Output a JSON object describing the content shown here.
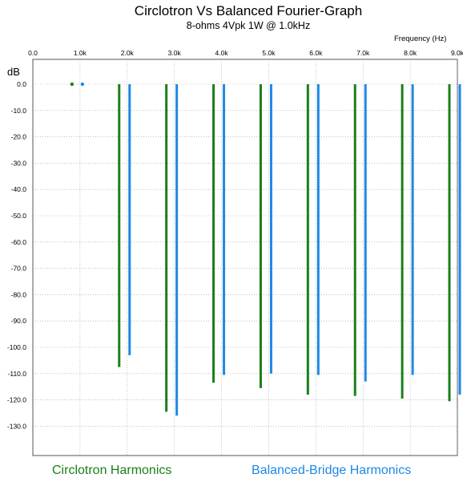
{
  "chart_data": {
    "type": "bar",
    "title": "Circlotron Vs Balanced Fourier-Graph",
    "subtitle": "8-ohms 4Vpk 1W @ 1.0kHz",
    "xlabel": "Frequency   (Hz)",
    "ylabel": "dB",
    "xlim": [
      0,
      9000
    ],
    "ylim": [
      -140,
      0
    ],
    "x_tick_labels": [
      "0.0",
      "1.0k",
      "2.0k",
      "3.0k",
      "4.0k",
      "5.0k",
      "6.0k",
      "7.0k",
      "8.0k",
      "9.0k"
    ],
    "y_tick_labels": [
      "0.0",
      "-10.0",
      "-20.0",
      "-30.0",
      "-40.0",
      "-50.0",
      "-60.0",
      "-70.0",
      "-80.0",
      "-90.0",
      "-100.0",
      "-110.0",
      "-120.0",
      "-130.0"
    ],
    "grid": true,
    "legend_position": "bottom",
    "series": [
      {
        "name": "Circlotron Harmonics",
        "color": "#1a7f1a",
        "x": [
          1000,
          2000,
          3000,
          4000,
          5000,
          6000,
          7000,
          8000,
          9000
        ],
        "values": [
          0,
          -107.5,
          -124.5,
          -113.5,
          -115.5,
          -118,
          -118.5,
          -119.5,
          -120.5
        ]
      },
      {
        "name": "Balanced-Bridge Harmonics",
        "color": "#1e88e5",
        "x": [
          1000,
          2000,
          3000,
          4000,
          5000,
          6000,
          7000,
          8000,
          9000
        ],
        "values": [
          0,
          -103,
          -126,
          -110.5,
          -110,
          -110.5,
          -113,
          -110.5,
          -118
        ]
      }
    ]
  }
}
